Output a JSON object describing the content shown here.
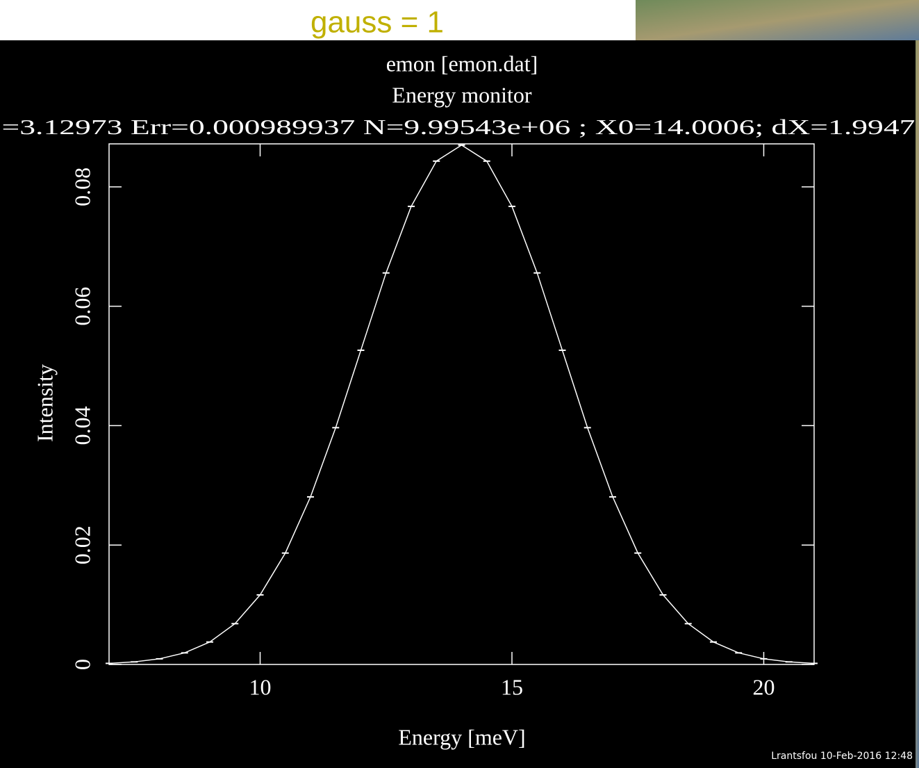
{
  "chart_data": {
    "type": "line",
    "heading": "gauss = 1",
    "title": "emon [emon.dat]",
    "subtitle": "Energy monitor",
    "stats": "=3.12973 Err=0.000989937 N=9.99543e+06 ; X0=14.0006; dX=1.9947",
    "x_label": "Energy [meV]",
    "y_label": "Intensity",
    "footer": "Lrantsfou 10-Feb-2016 12:48",
    "x": [
      7,
      7.5,
      8,
      8.5,
      9,
      9.5,
      10,
      10.5,
      11,
      11.5,
      12,
      12.5,
      13,
      13.5,
      14,
      14.5,
      15,
      15.5,
      16,
      16.5,
      17,
      17.5,
      18,
      18.5,
      19,
      19.5,
      20,
      20.5,
      21
    ],
    "series": [
      {
        "color": "#ffffff",
        "values": [
          0.00018,
          0.00043,
          0.00094,
          0.00194,
          0.00376,
          0.00683,
          0.01165,
          0.01866,
          0.02807,
          0.03966,
          0.05263,
          0.06558,
          0.07673,
          0.08431,
          0.087,
          0.08431,
          0.07673,
          0.06558,
          0.05263,
          0.03966,
          0.02807,
          0.01866,
          0.01165,
          0.00683,
          0.00376,
          0.00194,
          0.00094,
          0.00043,
          0.00018
        ]
      }
    ],
    "xlim": [
      7,
      21
    ],
    "xticks": [
      10,
      15,
      20
    ],
    "ylim": [
      0,
      0.0872
    ],
    "yticks": [
      0,
      0.02,
      0.04,
      0.06,
      0.08
    ]
  }
}
